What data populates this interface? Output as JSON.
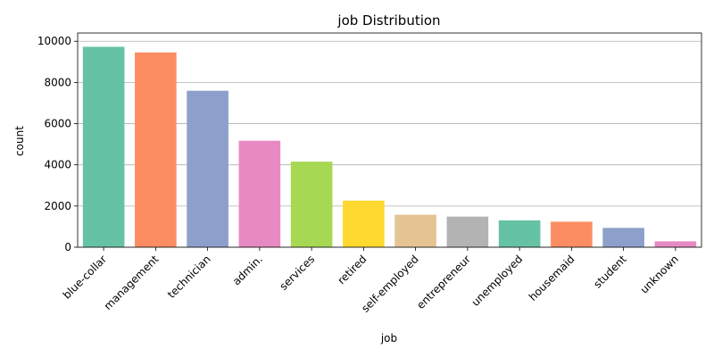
{
  "chart_data": {
    "type": "bar",
    "title": "job Distribution",
    "xlabel": "job",
    "ylabel": "count",
    "ylim": [
      0,
      10400
    ],
    "yticks": [
      0,
      2000,
      4000,
      6000,
      8000,
      10000
    ],
    "grid": "y",
    "categories": [
      "blue-collar",
      "management",
      "technician",
      "admin.",
      "services",
      "retired",
      "self-employed",
      "entrepreneur",
      "unemployed",
      "housemaid",
      "student",
      "unknown"
    ],
    "values": [
      9732,
      9458,
      7597,
      5171,
      4154,
      2264,
      1579,
      1487,
      1303,
      1240,
      938,
      288
    ],
    "colors": [
      "#66c2a5",
      "#fc8d62",
      "#8da0cb",
      "#e78ac3",
      "#a6d854",
      "#ffd92f",
      "#e5c494",
      "#b3b3b3",
      "#66c2a5",
      "#fc8d62",
      "#8da0cb",
      "#e78ac3"
    ]
  }
}
